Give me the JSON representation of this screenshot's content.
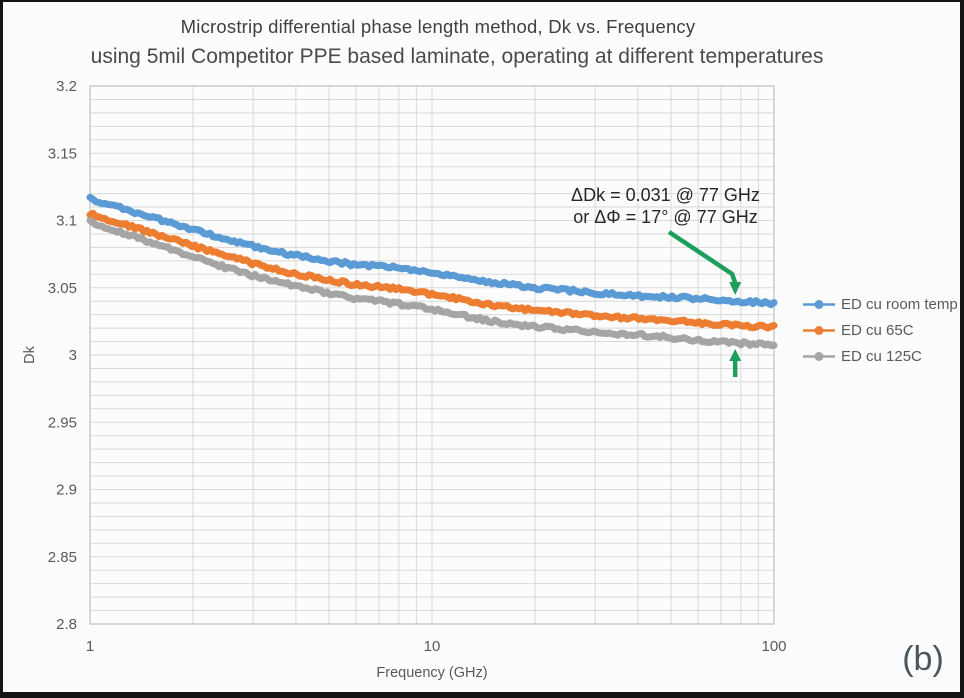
{
  "title": {
    "line1": "Microstrip differential phase length method, Dk vs. Frequency",
    "line2": "using 5mil Competitor PPE based laminate, operating at different temperatures"
  },
  "figure_label": "(b)",
  "colors": {
    "series_room_temp": "#5B9BD5",
    "series_65c": "#ED7D31",
    "series_125c": "#A5A5A5",
    "gridline": "#D9D9D9",
    "axis_line": "#BFBFBF",
    "tick_text": "#595959",
    "annotation_text": "#262626",
    "annotation_arrow": "#1E9E5C",
    "title_text": "#404040",
    "figure_label_text": "#4A5560"
  },
  "chart_data": {
    "type": "line",
    "title": "Microstrip differential phase length method, Dk vs. Frequency",
    "subtitle": "using 5mil Competitor PPE based laminate, operating at different temperatures",
    "xlabel": "Frequency (GHz)",
    "ylabel": "Dk",
    "x_axis": {
      "label": "Frequency (GHz)",
      "scale": "log",
      "min": 1,
      "max": 100,
      "tick_labels": [
        "1",
        "10",
        "100"
      ],
      "tick_values": [
        1,
        10,
        100
      ]
    },
    "y_axis": {
      "label": "Dk",
      "min": 2.8,
      "max": 3.2,
      "tick_labels": [
        "3.2",
        "3.15",
        "3.1",
        "3.05",
        "3",
        "2.95",
        "2.9",
        "2.85",
        "2.8"
      ],
      "tick_values": [
        3.2,
        3.15,
        3.1,
        3.05,
        3.0,
        2.95,
        2.9,
        2.85,
        2.8
      ],
      "minor_grid_step": 0.01
    },
    "grid": true,
    "legend_position": "right",
    "x": [
      1,
      1.2,
      1.5,
      2,
      2.5,
      3,
      4,
      5,
      6,
      7,
      8,
      10,
      13,
      16,
      20,
      25,
      30,
      40,
      50,
      60,
      77,
      90,
      100
    ],
    "series": [
      {
        "name": "ED cu room temp",
        "color": "#5B9BD5",
        "values": [
          3.116,
          3.11,
          3.103,
          3.093,
          3.086,
          3.081,
          3.074,
          3.07,
          3.067,
          3.066,
          3.065,
          3.061,
          3.056,
          3.053,
          3.05,
          3.048,
          3.046,
          3.044,
          3.043,
          3.042,
          3.04,
          3.039,
          3.038
        ]
      },
      {
        "name": "ED cu 65C",
        "color": "#ED7D31",
        "values": [
          3.105,
          3.099,
          3.091,
          3.081,
          3.074,
          3.068,
          3.06,
          3.056,
          3.052,
          3.051,
          3.049,
          3.045,
          3.04,
          3.036,
          3.033,
          3.031,
          3.029,
          3.027,
          3.026,
          3.024,
          3.022,
          3.021,
          3.021
        ]
      },
      {
        "name": "ED cu 125C",
        "color": "#A5A5A5",
        "values": [
          3.099,
          3.092,
          3.084,
          3.073,
          3.065,
          3.059,
          3.051,
          3.046,
          3.042,
          3.04,
          3.038,
          3.034,
          3.028,
          3.024,
          3.021,
          3.019,
          3.017,
          3.015,
          3.013,
          3.011,
          3.009,
          3.008,
          3.007
        ]
      }
    ],
    "annotation": {
      "line1": "ΔDk = 0.031 @ 77 GHz",
      "line2": "or ΔΦ = 17° @ 77 GHz",
      "target_freq_ghz": 77,
      "delta_dk": 0.031,
      "delta_phase_deg": 17,
      "arrow_color": "#1E9E5C"
    }
  }
}
